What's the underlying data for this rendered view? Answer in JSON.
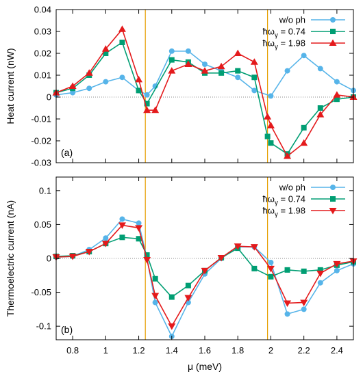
{
  "colors": {
    "series": [
      "#56B4E9",
      "#009E73",
      "#E41A1C"
    ],
    "vline": "#E69F00",
    "frame": "#000000",
    "zero_line": "#888888"
  },
  "chart_data": [
    {
      "type": "line",
      "panel_label": "(a)",
      "ylabel": "Heat current (nW)",
      "xlabel": "",
      "xlim": [
        0.7,
        2.5
      ],
      "ylim": [
        -0.03,
        0.04
      ],
      "yticks": [
        -0.03,
        -0.02,
        -0.01,
        0,
        0.01,
        0.02,
        0.03,
        0.04
      ],
      "ytick_labels": [
        "-0.03",
        "-0.02",
        "-0.01",
        "0",
        "0.01",
        "0.02",
        "0.03",
        "0.04"
      ],
      "vertical_lines": [
        1.24,
        1.98
      ],
      "zero_line": true,
      "legend_position": "top-right",
      "series": [
        {
          "name": "w/o ph",
          "marker": "circle",
          "x": [
            0.7,
            0.8,
            0.9,
            1.0,
            1.1,
            1.2,
            1.25,
            1.3,
            1.4,
            1.5,
            1.6,
            1.7,
            1.8,
            1.9,
            2.0,
            2.1,
            2.2,
            2.3,
            2.4,
            2.5
          ],
          "y": [
            0.001,
            0.002,
            0.004,
            0.007,
            0.009,
            0.003,
            0.001,
            0.005,
            0.021,
            0.021,
            0.015,
            0.012,
            0.009,
            0.003,
            0.0005,
            0.012,
            0.019,
            0.013,
            0.007,
            0.003
          ]
        },
        {
          "name": "ħω_γ = 0.74",
          "marker": "square",
          "x": [
            0.7,
            0.8,
            0.9,
            1.0,
            1.1,
            1.2,
            1.25,
            1.4,
            1.5,
            1.6,
            1.7,
            1.8,
            1.9,
            1.98,
            2.0,
            2.1,
            2.2,
            2.3,
            2.4,
            2.5
          ],
          "y": [
            0.002,
            0.004,
            0.01,
            0.02,
            0.025,
            0.003,
            -0.003,
            0.017,
            0.016,
            0.011,
            0.011,
            0.012,
            0.009,
            -0.018,
            -0.021,
            -0.026,
            -0.014,
            -0.005,
            -0.001,
            0.0
          ]
        },
        {
          "name": "ħω_γ = 1.98",
          "marker": "triangle-up",
          "x": [
            0.7,
            0.8,
            0.9,
            1.0,
            1.1,
            1.2,
            1.25,
            1.3,
            1.4,
            1.5,
            1.6,
            1.7,
            1.8,
            1.9,
            1.98,
            2.0,
            2.1,
            2.2,
            2.3,
            2.4,
            2.5
          ],
          "y": [
            0.002,
            0.005,
            0.011,
            0.022,
            0.031,
            0.008,
            -0.006,
            -0.006,
            0.012,
            0.015,
            0.012,
            0.014,
            0.02,
            0.016,
            -0.009,
            -0.013,
            -0.027,
            -0.021,
            -0.008,
            0.001,
            0.0
          ]
        }
      ]
    },
    {
      "type": "line",
      "panel_label": "(b)",
      "ylabel": "Thermoelectric current (nA)",
      "xlabel": "μ (meV)",
      "xlim": [
        0.7,
        2.5
      ],
      "ylim": [
        -0.12,
        0.12
      ],
      "xticks": [
        0.8,
        1.0,
        1.2,
        1.4,
        1.6,
        1.8,
        2.0,
        2.2,
        2.4
      ],
      "xtick_labels": [
        "0.8",
        "1",
        "1.2",
        "1.4",
        "1.6",
        "1.8",
        "2",
        "2.2",
        "2.4"
      ],
      "yticks": [
        -0.1,
        -0.05,
        0,
        0.05,
        0.1
      ],
      "ytick_labels": [
        "-0.1",
        "-0.05",
        "0",
        "0.05",
        "0.1"
      ],
      "vertical_lines": [
        1.24,
        1.98
      ],
      "zero_line": true,
      "legend_position": "top-right",
      "series": [
        {
          "name": "w/o ph",
          "marker": "circle",
          "x": [
            0.7,
            0.8,
            0.9,
            1.0,
            1.1,
            1.2,
            1.25,
            1.3,
            1.4,
            1.5,
            1.6,
            1.7,
            1.8,
            1.9,
            2.0,
            2.1,
            2.2,
            2.3,
            2.4,
            2.5
          ],
          "y": [
            0.002,
            0.003,
            0.013,
            0.03,
            0.058,
            0.052,
            0.0,
            -0.065,
            -0.115,
            -0.065,
            -0.023,
            0.0,
            0.017,
            0.017,
            -0.006,
            -0.082,
            -0.075,
            -0.036,
            -0.018,
            -0.008
          ]
        },
        {
          "name": "ħω_γ = 0.74",
          "marker": "square",
          "x": [
            0.7,
            0.8,
            0.9,
            1.0,
            1.1,
            1.2,
            1.25,
            1.3,
            1.4,
            1.5,
            1.6,
            1.7,
            1.8,
            1.9,
            2.0,
            2.1,
            2.2,
            2.3,
            2.4,
            2.5
          ],
          "y": [
            0.003,
            0.004,
            0.01,
            0.022,
            0.031,
            0.029,
            0.005,
            -0.03,
            -0.057,
            -0.04,
            -0.018,
            0.001,
            0.015,
            -0.015,
            -0.027,
            -0.017,
            -0.019,
            -0.017,
            -0.01,
            -0.005
          ]
        },
        {
          "name": "ħω_γ = 1.98",
          "marker": "triangle-down",
          "x": [
            0.7,
            0.8,
            0.9,
            1.0,
            1.1,
            1.2,
            1.25,
            1.3,
            1.4,
            1.5,
            1.6,
            1.7,
            1.8,
            1.9,
            2.0,
            2.1,
            2.2,
            2.3,
            2.4,
            2.5
          ],
          "y": [
            0.002,
            0.003,
            0.01,
            0.022,
            0.049,
            0.045,
            -0.002,
            -0.055,
            -0.1,
            -0.058,
            -0.018,
            0.001,
            0.018,
            0.017,
            -0.015,
            -0.066,
            -0.065,
            -0.022,
            -0.008,
            -0.004
          ]
        }
      ]
    }
  ]
}
